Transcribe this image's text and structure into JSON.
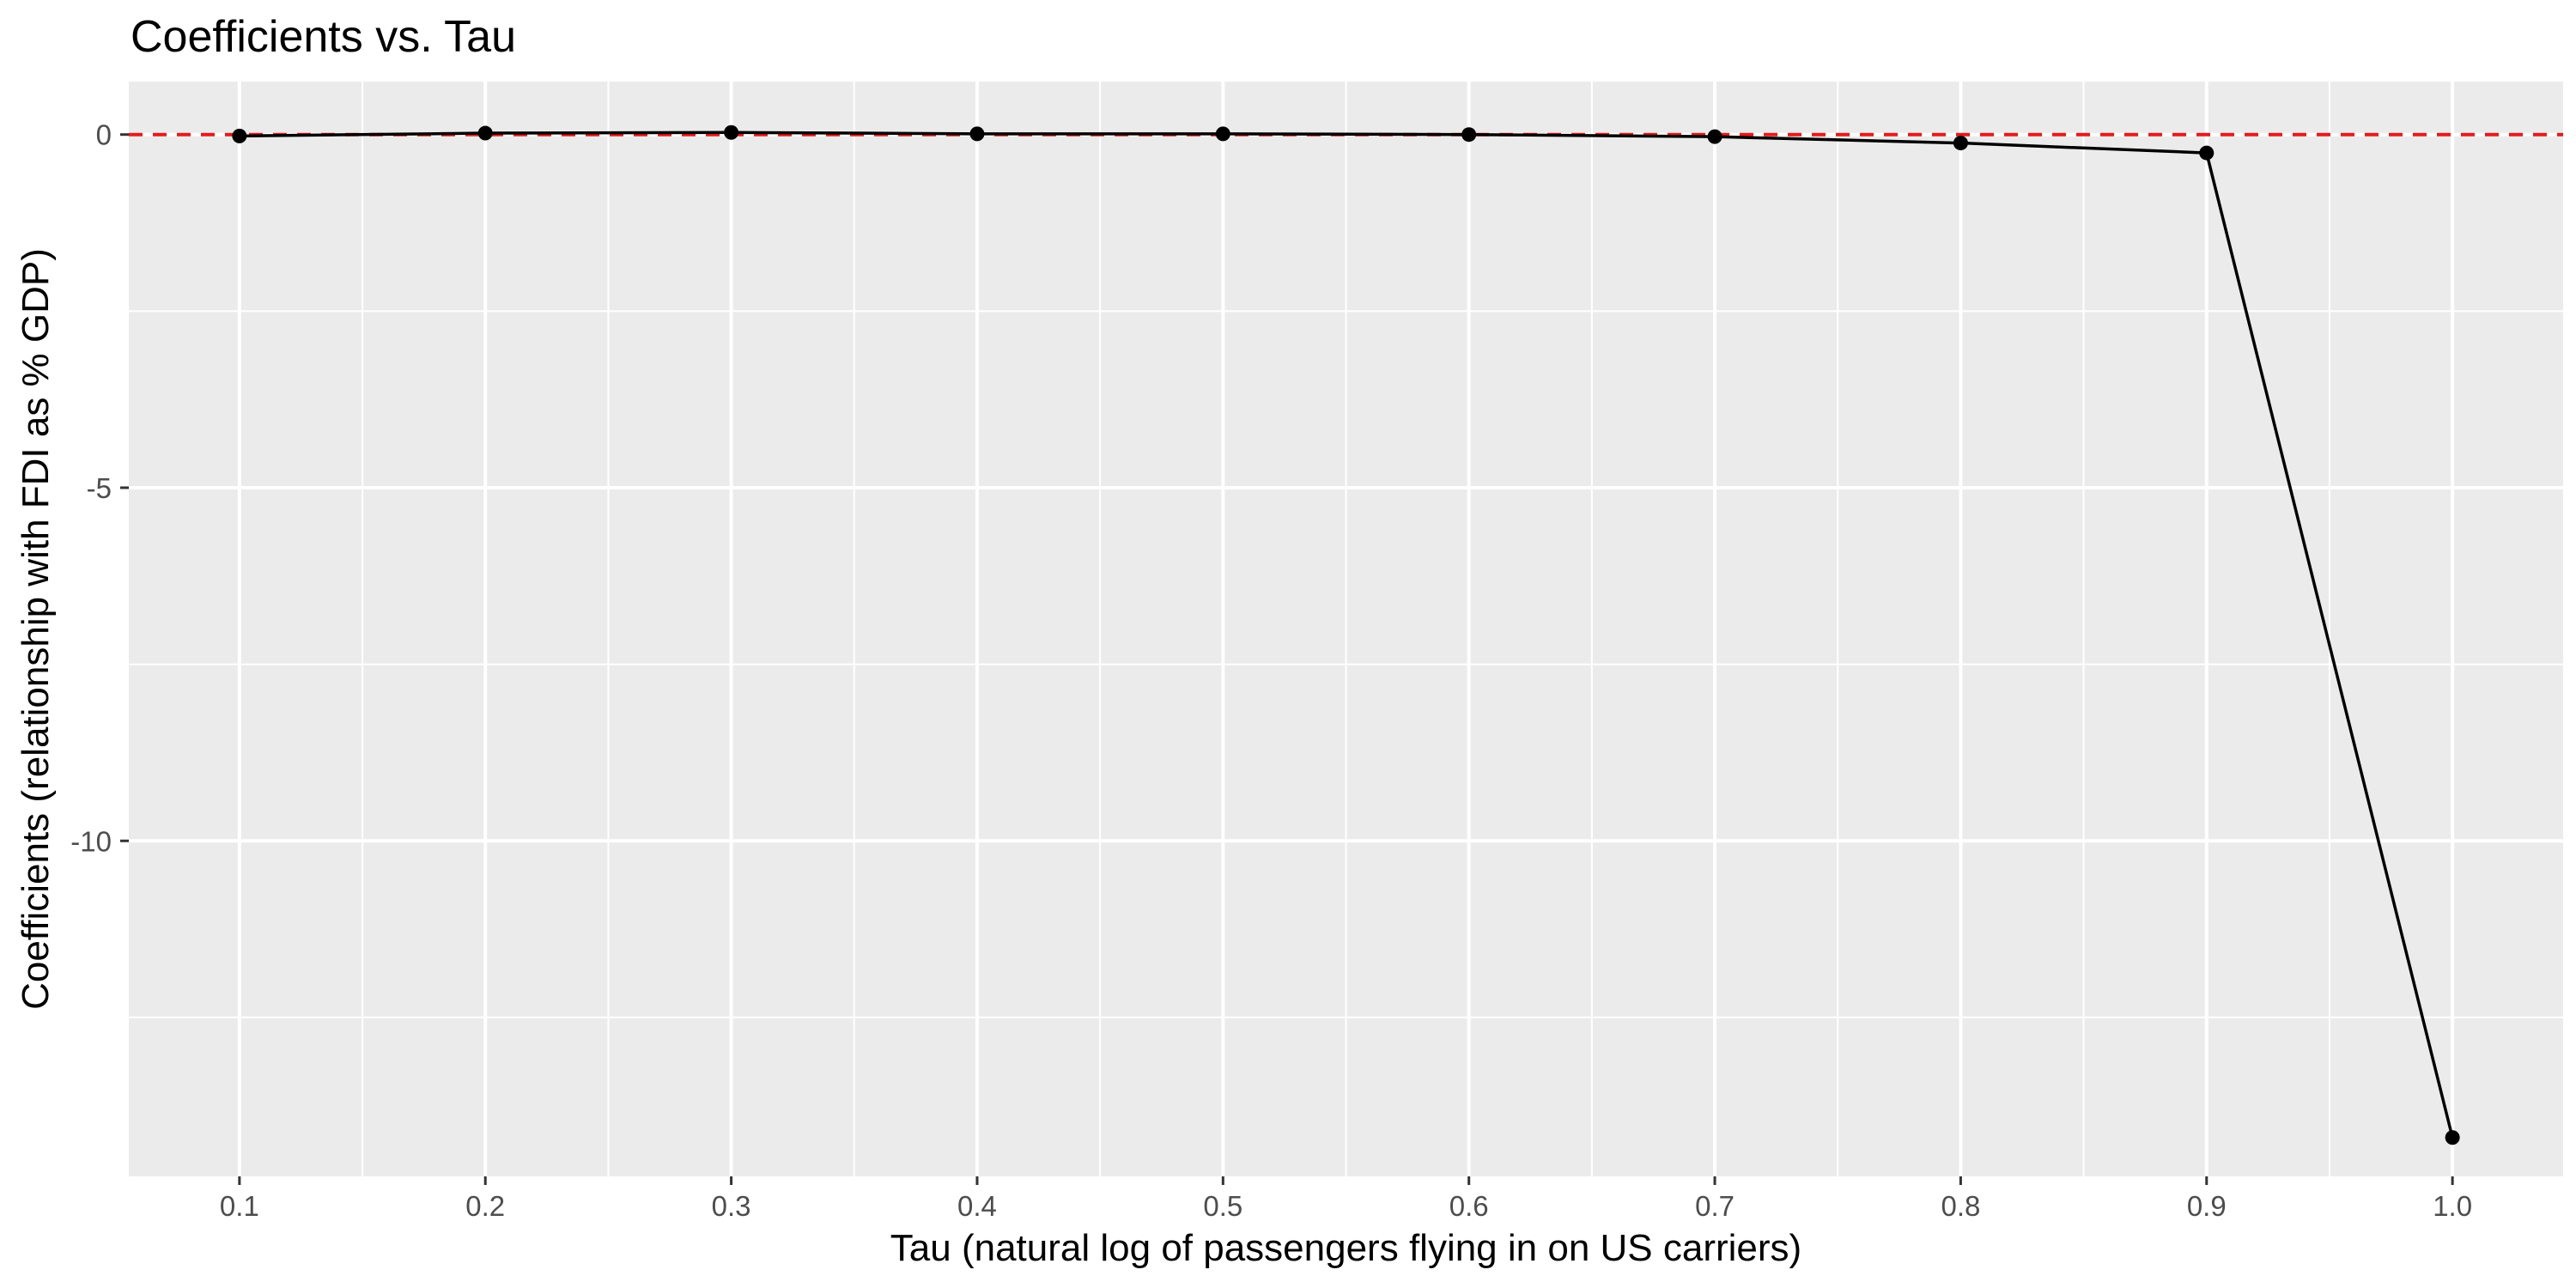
{
  "chart_data": {
    "type": "line",
    "title": "Coefficients vs. Tau",
    "xlabel": "Tau (natural log of passengers flying in on US carriers)",
    "ylabel": "Coefficients (relationship with FDI as % GDP)",
    "x": [
      0.1,
      0.2,
      0.3,
      0.4,
      0.5,
      0.6,
      0.7,
      0.8,
      0.9,
      1.0
    ],
    "series": [
      {
        "values": [
          -0.02,
          0.02,
          0.03,
          0.01,
          0.01,
          0.0,
          -0.03,
          -0.12,
          -0.26,
          -14.2
        ]
      }
    ],
    "xlim": [
      0.055,
      1.045
    ],
    "ylim": [
      -14.75,
      0.75
    ],
    "x_ticks": [
      {
        "value": 0.1,
        "label": "0.1"
      },
      {
        "value": 0.2,
        "label": "0.2"
      },
      {
        "value": 0.3,
        "label": "0.3"
      },
      {
        "value": 0.4,
        "label": "0.4"
      },
      {
        "value": 0.5,
        "label": "0.5"
      },
      {
        "value": 0.6,
        "label": "0.6"
      },
      {
        "value": 0.7,
        "label": "0.7"
      },
      {
        "value": 0.8,
        "label": "0.8"
      },
      {
        "value": 0.9,
        "label": "0.9"
      },
      {
        "value": 1.0,
        "label": "1.0"
      }
    ],
    "y_ticks": [
      {
        "value": 0,
        "label": "0"
      },
      {
        "value": -5,
        "label": "-5"
      },
      {
        "value": -10,
        "label": "-10"
      }
    ],
    "reference_line": {
      "y": 0,
      "style": "dashed",
      "color": "#e41a1c"
    },
    "grid": true,
    "colors": {
      "panel": "#ebebeb",
      "grid": "#ffffff",
      "line": "#000000",
      "point": "#000000"
    }
  }
}
